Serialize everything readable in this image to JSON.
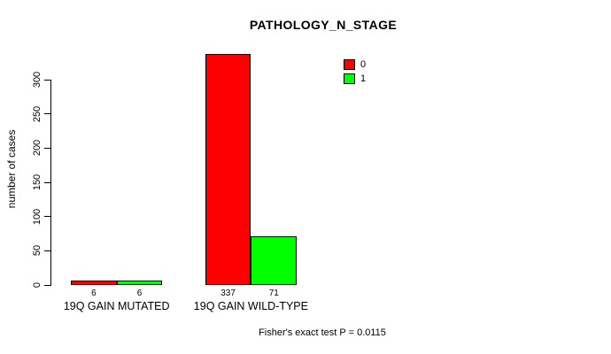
{
  "chart_data": {
    "type": "bar",
    "title": "PATHOLOGY_N_STAGE",
    "categories": [
      "19Q GAIN MUTATED",
      "19Q GAIN WILD-TYPE"
    ],
    "series": [
      {
        "name": "0",
        "color": "#ff0000",
        "values": [
          6,
          337
        ]
      },
      {
        "name": "1",
        "color": "#00ff00",
        "values": [
          6,
          71
        ]
      }
    ],
    "xlabel": "",
    "ylabel": "number of cases",
    "yticks": [
      0,
      50,
      100,
      150,
      200,
      250,
      300
    ],
    "ylim": [
      0,
      337
    ],
    "grid": false,
    "legend_position": "top-right-inside",
    "annotation": "Fisher's exact test P = 0.0115",
    "colors": {
      "series0": "#ff0000",
      "series1": "#00ff00",
      "axis": "#000000",
      "background": "#ffffff"
    }
  }
}
